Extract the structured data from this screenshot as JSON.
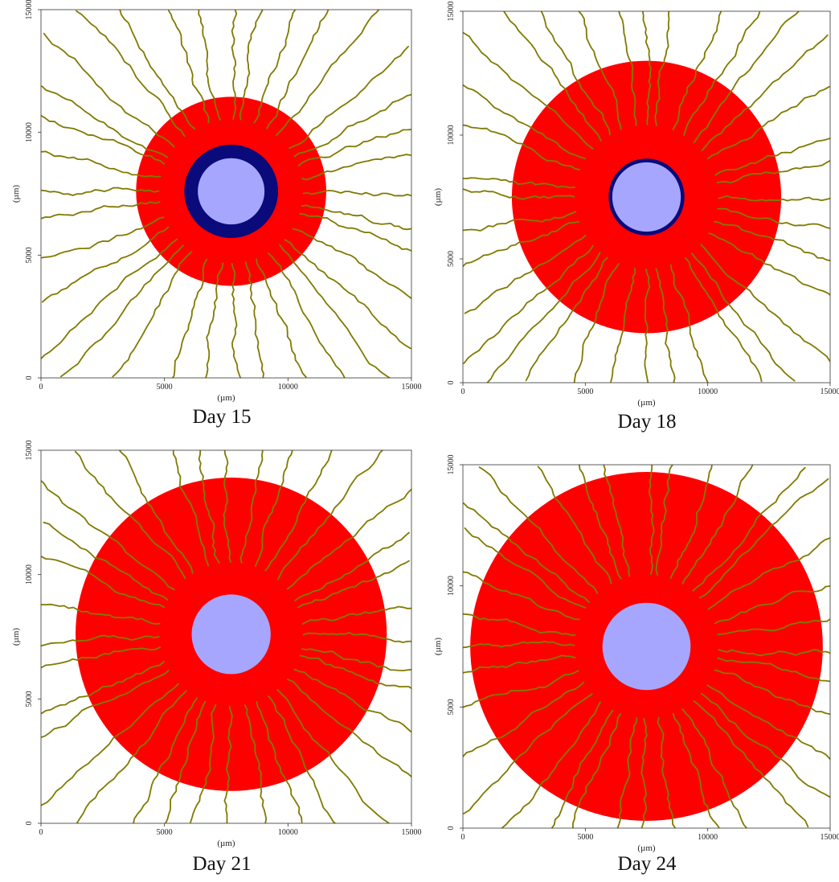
{
  "colors": {
    "tumor": "#ff0000",
    "inner_ring": "#0a0a7a",
    "necrotic_core": "#a6a6ff",
    "vessels": "#807a00",
    "axis": "#333333"
  },
  "chart_data": [
    {
      "type": "scatter",
      "title": "Day 15",
      "xlabel": "(µm)",
      "ylabel": "(µm)",
      "xlim": [
        0,
        15000
      ],
      "ylim": [
        0,
        15000
      ],
      "x_ticks": [
        0,
        5000,
        10000,
        15000
      ],
      "y_ticks": [
        0,
        5000,
        10000,
        15000
      ],
      "grid": false,
      "regions": [
        {
          "name": "tumor",
          "cx": 7700,
          "cy": 7600,
          "r": 3850,
          "color": "#ff0000"
        },
        {
          "name": "inner-ring",
          "cx": 7700,
          "cy": 7600,
          "r": 1900,
          "color": "#0a0a7a"
        },
        {
          "name": "core",
          "cx": 7700,
          "cy": 7600,
          "r": 1350,
          "color": "#a6a6ff"
        }
      ]
    },
    {
      "type": "scatter",
      "title": "Day 18",
      "xlabel": "(µm)",
      "ylabel": "(µm)",
      "xlim": [
        0,
        15000
      ],
      "ylim": [
        0,
        15000
      ],
      "x_ticks": [
        0,
        5000,
        10000,
        15000
      ],
      "y_ticks": [
        0,
        5000,
        10000,
        15000
      ],
      "grid": false,
      "regions": [
        {
          "name": "tumor",
          "cx": 7500,
          "cy": 7500,
          "r": 5500,
          "color": "#ff0000"
        },
        {
          "name": "inner-ring",
          "cx": 7500,
          "cy": 7500,
          "r": 1550,
          "color": "#0a0a7a"
        },
        {
          "name": "core",
          "cx": 7500,
          "cy": 7500,
          "r": 1400,
          "color": "#a6a6ff"
        }
      ]
    },
    {
      "type": "scatter",
      "title": "Day 21",
      "xlabel": "(µm)",
      "ylabel": "(µm)",
      "xlim": [
        0,
        15000
      ],
      "ylim": [
        0,
        15000
      ],
      "x_ticks": [
        0,
        5000,
        10000,
        15000
      ],
      "y_ticks": [
        0,
        5000,
        10000,
        15000
      ],
      "grid": false,
      "regions": [
        {
          "name": "tumor",
          "cx": 7700,
          "cy": 7600,
          "r": 6300,
          "color": "#ff0000"
        },
        {
          "name": "core",
          "cx": 7700,
          "cy": 7600,
          "r": 1600,
          "color": "#a6a6ff"
        }
      ]
    },
    {
      "type": "scatter",
      "title": "Day 24",
      "xlabel": "(µm)",
      "ylabel": "(µm)",
      "xlim": [
        0,
        15000
      ],
      "ylim": [
        0,
        15000
      ],
      "x_ticks": [
        0,
        5000,
        10000,
        15000
      ],
      "y_ticks": [
        0,
        5000,
        10000,
        15000
      ],
      "grid": false,
      "regions": [
        {
          "name": "tumor",
          "cx": 7500,
          "cy": 7500,
          "r": 7200,
          "color": "#ff0000"
        },
        {
          "name": "core",
          "cx": 7500,
          "cy": 7500,
          "r": 1800,
          "color": "#a6a6ff"
        }
      ]
    }
  ]
}
